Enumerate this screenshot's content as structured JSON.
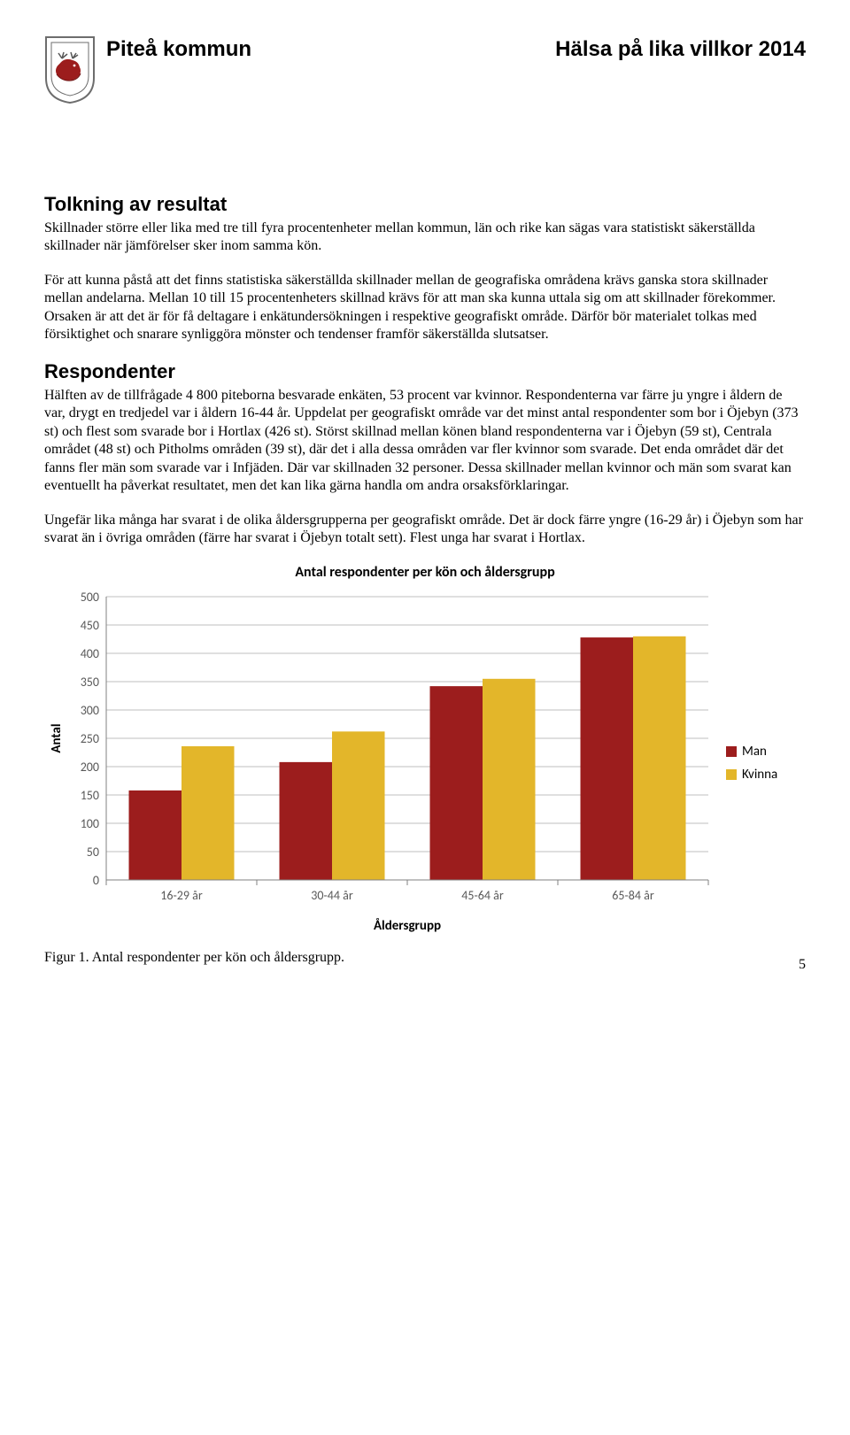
{
  "header": {
    "municipality": "Piteå kommun",
    "report_title": "Hälsa på lika villkor 2014"
  },
  "sections": {
    "tolkning": {
      "heading": "Tolkning av resultat",
      "p1": "Skillnader större eller lika med tre till fyra procentenheter mellan kommun, län och rike kan sägas vara statistiskt säkerställda skillnader när jämförelser sker inom samma kön.",
      "p2": "För att kunna påstå att det finns statistiska säkerställda skillnader mellan de geografiska områdena krävs ganska stora skillnader mellan andelarna. Mellan 10 till 15 procentenheters skillnad krävs för att man ska kunna uttala sig om att skillnader förekommer. Orsaken är att det är för få deltagare i enkätundersökningen i respektive geografiskt område. Därför bör materialet tolkas med försiktighet och snarare synliggöra mönster och tendenser framför säkerställda slutsatser."
    },
    "respondenter": {
      "heading": "Respondenter",
      "p1": "Hälften av de tillfrågade 4 800 piteborna besvarade enkäten, 53 procent var kvinnor. Respondenterna var färre ju yngre i åldern de var, drygt en tredjedel var i åldern 16-44 år. Uppdelat per geografiskt område var det minst antal respondenter som bor i Öjebyn (373 st) och flest som svarade bor i Hortlax (426 st). Störst skillnad mellan könen bland respondenterna var i Öjebyn (59 st), Centrala området (48 st) och Pitholms områden (39 st), där det i alla dessa områden var fler kvinnor som svarade. Det enda området där det fanns fler män som svarade var i Infjäden. Där var skillnaden 32 personer. Dessa skillnader mellan kvinnor och män som svarat kan eventuellt ha påverkat resultatet, men det kan lika gärna handla om andra orsaksförklaringar.",
      "p2": "Ungefär lika många har svarat i de olika åldersgrupperna per geografiskt område. Det är dock färre yngre (16-29 år) i Öjebyn som har svarat än i övriga områden (färre har svarat i Öjebyn totalt sett). Flest unga har svarat i Hortlax."
    }
  },
  "chart": {
    "type": "grouped-bar",
    "title": "Antal respondenter per kön och åldersgrupp",
    "y_label": "Antal",
    "x_label": "Åldersgrupp",
    "categories": [
      "16-29 år",
      "30-44 år",
      "45-64 år",
      "65-84 år"
    ],
    "series": [
      {
        "name": "Man",
        "color": "#9c1d1d",
        "values": [
          158,
          208,
          342,
          428
        ]
      },
      {
        "name": "Kvinna",
        "color": "#e3b62a",
        "values": [
          236,
          262,
          355,
          430
        ]
      }
    ],
    "y_axis": {
      "min": 0,
      "max": 500,
      "step": 50,
      "ticks": [
        0,
        50,
        100,
        150,
        200,
        250,
        300,
        350,
        400,
        450,
        500
      ]
    },
    "grid_color": "#bfbfbf",
    "axis_color": "#808080",
    "tickmark_color": "#808080",
    "tick_font": {
      "family": "Calibri, Arial, sans-serif",
      "size": 14,
      "color": "#595959"
    },
    "label_font": {
      "family": "Calibri, Arial, sans-serif",
      "size": 15,
      "color": "#000",
      "weight": "bold"
    },
    "bar_group_gap": 0.5,
    "bar_width_ratio": 0.35,
    "caption": "Figur 1. Antal respondenter per kön och åldersgrupp."
  },
  "page_number": "5",
  "crest": {
    "body_color": "#9c1d1d",
    "edge_color": "#6d6d6d"
  }
}
